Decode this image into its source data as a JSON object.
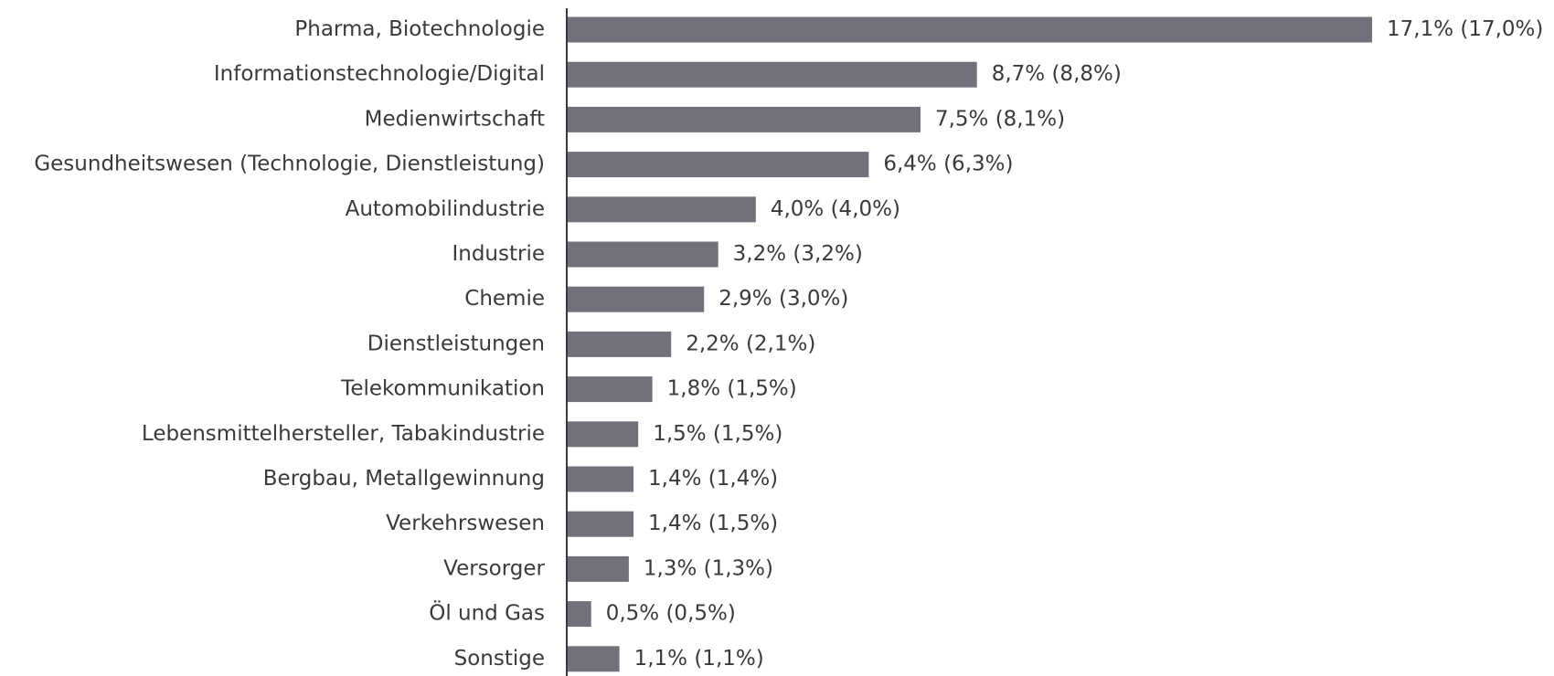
{
  "chart_data": {
    "type": "barh",
    "categories": [
      "Pharma, Biotechnologie",
      "Informationstechnologie/Digital",
      "Medienwirtschaft",
      "Gesundheitswesen (Technologie, Dienstleistung)",
      "Automobilindustrie",
      "Industrie",
      "Chemie",
      "Dienstleistungen",
      "Telekommunikation",
      "Lebensmittelhersteller, Tabakindustrie",
      "Bergbau, Metallgewinnung",
      "Verkehrswesen",
      "Versorger",
      "Öl und Gas",
      "Sonstige"
    ],
    "values": [
      17.1,
      8.7,
      7.5,
      6.4,
      4.0,
      3.2,
      2.9,
      2.2,
      1.8,
      1.5,
      1.4,
      1.4,
      1.3,
      0.5,
      1.1
    ],
    "value_labels": [
      "17,1% (17,0%)",
      "8,7% (8,8%)",
      "7,5% (8,1%)",
      "6,4% (6,3%)",
      "4,0% (4,0%)",
      "3,2% (3,2%)",
      "2,9% (3,0%)",
      "2,2% (2,1%)",
      "1,8% (1,5%)",
      "1,5% (1,5%)",
      "1,4% (1,4%)",
      "1,4% (1,5%)",
      "1,3% (1,3%)",
      "0,5% (0,5%)",
      "1,1% (1,1%)"
    ],
    "color": "#72717b"
  }
}
